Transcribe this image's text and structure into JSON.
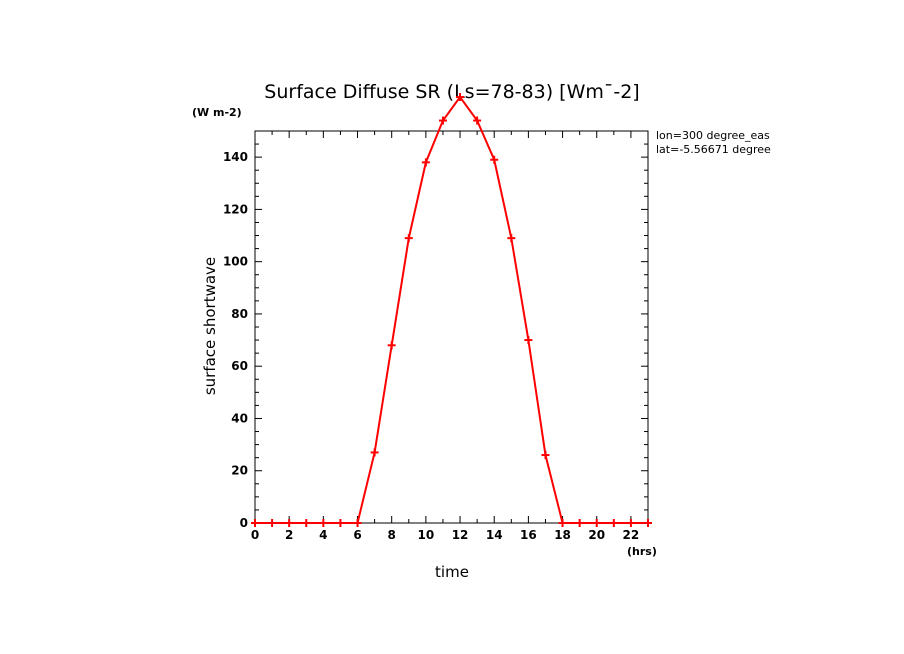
{
  "chart_data": {
    "type": "line",
    "title": "Surface Diffuse SR (Ls=78-83) [Wm¯-2]",
    "xlabel": "time",
    "ylabel": "surface shortwave",
    "x_unit": "(hrs)",
    "y_unit": "(W m-2)",
    "xlim": [
      0,
      23
    ],
    "ylim": [
      0,
      150
    ],
    "x_ticks": [
      0,
      2,
      4,
      6,
      8,
      10,
      12,
      14,
      16,
      18,
      20,
      22
    ],
    "y_ticks": [
      0,
      20,
      40,
      60,
      80,
      100,
      120,
      140
    ],
    "grid": false,
    "annotations": [
      "lon=300 degree_eas",
      "lat=-5.56671 degree"
    ],
    "line_color": "#ff0000",
    "marker": "plus",
    "series": [
      {
        "x": [
          0,
          1,
          2,
          3,
          4,
          5,
          6,
          7,
          8,
          9,
          10,
          11,
          12,
          13,
          14,
          15,
          16,
          17,
          18,
          19,
          20,
          21,
          22,
          23
        ],
        "values": [
          0,
          0,
          0,
          0,
          0,
          0,
          0,
          27,
          68,
          109,
          138,
          154,
          163,
          154,
          139,
          109,
          70,
          26,
          0,
          0,
          0,
          0,
          0,
          0
        ]
      }
    ]
  }
}
